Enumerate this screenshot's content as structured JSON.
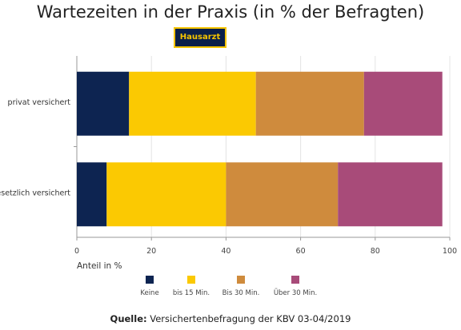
{
  "chart_data": {
    "type": "bar",
    "orientation": "horizontal",
    "stacked": true,
    "title": "Wartezeiten in der Praxis (in % der Befragten)",
    "subtitle_badge": "Hausarzt",
    "categories": [
      "privat versichert",
      "gesetzlich versichert"
    ],
    "series": [
      {
        "name": "Keine",
        "color": "#0d2451",
        "values": [
          14,
          8
        ]
      },
      {
        "name": "bis 15 Min.",
        "color": "#fbc902",
        "values": [
          34,
          32
        ]
      },
      {
        "name": "Bis 30 Min.",
        "color": "#cf8b3d",
        "values": [
          29,
          30
        ]
      },
      {
        "name": "Über 30 Min.",
        "color": "#a84b79",
        "values": [
          21,
          28
        ]
      }
    ],
    "xlabel": "Anteil in %",
    "xlim": [
      0,
      100
    ],
    "xticks": [
      "0",
      "20",
      "40",
      "60",
      "80",
      "100"
    ],
    "grid": "vertical",
    "legend_position": "bottom"
  },
  "source": {
    "label": "Quelle:",
    "text": "Versichertenbefragung der KBV 03-04/2019"
  }
}
